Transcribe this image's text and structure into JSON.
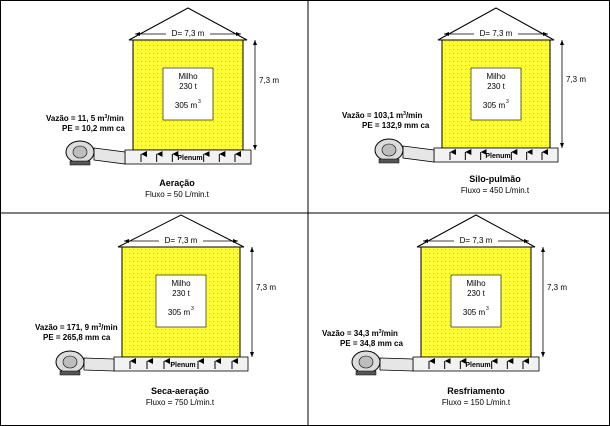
{
  "panels": [
    {
      "id": "aeracao",
      "diameter": "D= 7,3 m",
      "height": "7,3 m",
      "content_name": "Milho",
      "content_mass": "230 t",
      "content_volume": "305 m",
      "volume_exp": "3",
      "vazao_label": "Vazão = 11, 5 m",
      "vazao_exp": "3",
      "vazao_unit": "/min",
      "pe": "PE = 10,2 mm ca",
      "plenum": "Plenum",
      "title": "Aeração",
      "fluxo": "Fluxo = 50 L/min.t"
    },
    {
      "id": "silo-pulmao",
      "diameter": "D= 7,3 m",
      "height": "7,3 m",
      "content_name": "Milho",
      "content_mass": "230 t",
      "content_volume": "305 m",
      "volume_exp": "3",
      "vazao_label": "Vazão = 103,1 m",
      "vazao_exp": "3",
      "vazao_unit": "/min",
      "pe": "PE = 132,9 mm ca",
      "plenum": "Plenum",
      "title": "Silo-pulmão",
      "fluxo": "Fluxo = 450 L/min.t"
    },
    {
      "id": "seca-aeracao",
      "diameter": "D= 7,3 m",
      "height": "7,3 m",
      "content_name": "Milho",
      "content_mass": "230 t",
      "content_volume": "305 m",
      "volume_exp": "3",
      "vazao_label": "Vazão = 171, 9 m",
      "vazao_exp": "3",
      "vazao_unit": "/min",
      "pe": "PE = 265,8 mm ca",
      "plenum": "Plenum",
      "title": "Seca-aeração",
      "fluxo": "Fluxo = 750 L/min.t"
    },
    {
      "id": "resfriamento",
      "diameter": "D= 7,3 m",
      "height": "7,3 m",
      "content_name": "Milho",
      "content_mass": "230 t",
      "content_volume": "305 m",
      "volume_exp": "3",
      "vazao_label": "Vazão = 34,3 m",
      "vazao_exp": "3",
      "vazao_unit": "/min",
      "pe": "PE = 34,8 mm ca",
      "plenum": "Plenum",
      "title": "Resfriamento",
      "fluxo": "Fluxo = 150 L/min.t"
    }
  ],
  "colors": {
    "grain": "#ffff33",
    "grain_dot": "#d8c800",
    "line": "#000000",
    "plenum_fill": "#f2f2f2"
  }
}
